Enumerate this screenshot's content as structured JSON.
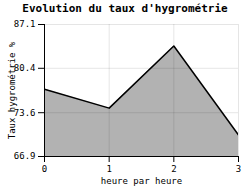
{
  "chart_data": {
    "type": "area",
    "title": "Evolution du taux d'hygrométrie",
    "xlabel": "heure par heure",
    "ylabel": "Taux hygrométrie %",
    "x": [
      0,
      1,
      2,
      3
    ],
    "values": [
      77.2,
      74.3,
      83.8,
      70.2
    ],
    "xlim": [
      0,
      3
    ],
    "ylim": [
      66.9,
      87.1
    ],
    "xticks": [
      0,
      1,
      2,
      3
    ],
    "yticks": [
      66.9,
      73.6,
      80.4,
      87.1
    ],
    "grid": true
  }
}
